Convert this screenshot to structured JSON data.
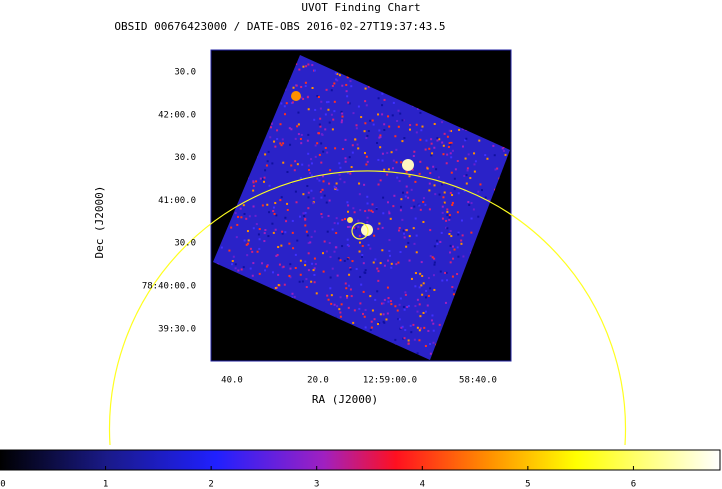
{
  "header": {
    "title": "UVOT Finding Chart",
    "subtitle": "OBSID 00676423000 / DATE-OBS 2016-02-27T19:37:43.5"
  },
  "y_axis": {
    "label": "Dec (J2000)",
    "ticks": [
      "30.0",
      "42:00.0",
      "30.0",
      "41:00.0",
      "30.0",
      "78:40:00.0",
      "39:30.0"
    ]
  },
  "x_axis": {
    "label": "RA (J2000)",
    "ticks": [
      "40.0",
      "20.0",
      "12:59:00.0",
      "58:40.0"
    ]
  },
  "colorbar": {
    "lim": [
      0,
      6.82
    ],
    "ticks": [
      0,
      1,
      2,
      3,
      4,
      5,
      6
    ]
  }
}
